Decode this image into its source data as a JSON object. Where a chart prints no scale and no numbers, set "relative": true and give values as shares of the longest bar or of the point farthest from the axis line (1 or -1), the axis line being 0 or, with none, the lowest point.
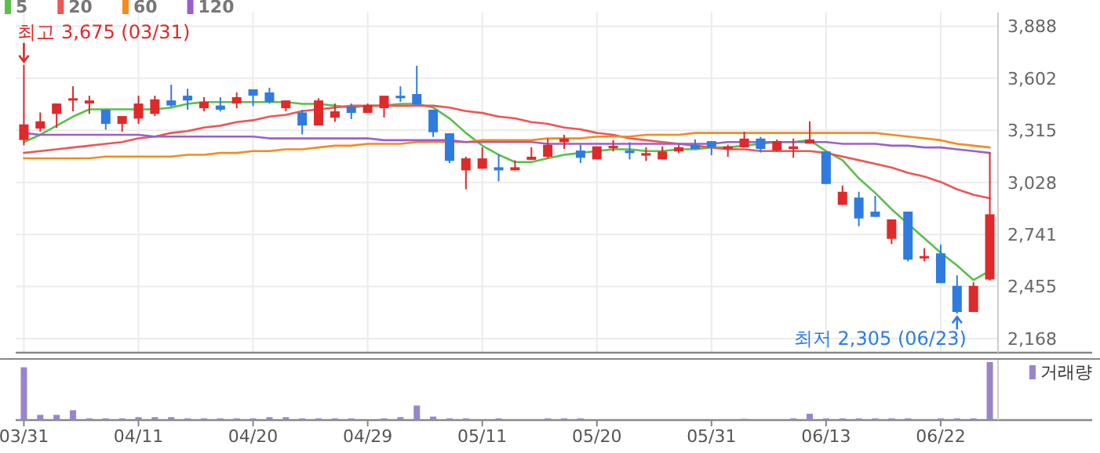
{
  "chart_data": [
    {
      "type": "candlestick",
      "categories": [
        "03/31",
        null,
        null,
        null,
        null,
        null,
        null,
        "04/11",
        null,
        null,
        null,
        null,
        null,
        null,
        "04/20",
        null,
        null,
        null,
        null,
        null,
        null,
        "04/29",
        null,
        null,
        null,
        null,
        null,
        null,
        "05/11",
        null,
        null,
        null,
        null,
        null,
        null,
        "05/20",
        null,
        null,
        null,
        null,
        null,
        null,
        "05/31",
        null,
        null,
        null,
        null,
        null,
        null,
        "06/13",
        null,
        null,
        null,
        null,
        null,
        null,
        "06/22",
        null,
        null,
        null
      ],
      "tick_labels": "y",
      "ylim": [
        2090,
        3963
      ],
      "yticks": [
        {
          "value": 2168,
          "label": "2,168"
        },
        {
          "value": 2455,
          "label": "2,455"
        },
        {
          "value": 2741,
          "label": "2,741"
        },
        {
          "value": 3028,
          "label": "3,028"
        },
        {
          "value": 3315,
          "label": "3,315"
        },
        {
          "value": 3602,
          "label": "3,602"
        },
        {
          "value": 3888,
          "label": "3,888"
        }
      ],
      "grid": true,
      "legend": "top left",
      "ohlc": [
        [
          3261,
          3675,
          3232,
          3347
        ],
        [
          3324,
          3413,
          3307,
          3364
        ],
        [
          3405,
          3462,
          3327,
          3462
        ],
        [
          3485,
          3557,
          3419,
          3491
        ],
        [
          3462,
          3505,
          3405,
          3479
        ],
        [
          3428,
          3428,
          3318,
          3350
        ],
        [
          3350,
          3393,
          3307,
          3393
        ],
        [
          3379,
          3505,
          3350,
          3462
        ],
        [
          3405,
          3505,
          3393,
          3485
        ],
        [
          3479,
          3566,
          3442,
          3451
        ],
        [
          3505,
          3543,
          3428,
          3479
        ],
        [
          3436,
          3497,
          3419,
          3471
        ],
        [
          3451,
          3497,
          3419,
          3428
        ],
        [
          3462,
          3523,
          3436,
          3497
        ],
        [
          3540,
          3540,
          3448,
          3505
        ],
        [
          3523,
          3549,
          3462,
          3471
        ],
        [
          3436,
          3479,
          3419,
          3479
        ],
        [
          3413,
          3428,
          3292,
          3341
        ],
        [
          3341,
          3491,
          3341,
          3479
        ],
        [
          3384,
          3462,
          3361,
          3419
        ],
        [
          3445,
          3462,
          3376,
          3410
        ],
        [
          3410,
          3462,
          3410,
          3453
        ],
        [
          3436,
          3505,
          3385,
          3505
        ],
        [
          3505,
          3557,
          3471,
          3491
        ],
        [
          3514,
          3670,
          3456,
          3456
        ],
        [
          3428,
          3428,
          3278,
          3304
        ],
        [
          3298,
          3298,
          3134,
          3146
        ],
        [
          3094,
          3169,
          2990,
          3160
        ],
        [
          3103,
          3221,
          3103,
          3160
        ],
        [
          3111,
          3183,
          3034,
          3094
        ],
        [
          3094,
          3149,
          3094,
          3111
        ],
        [
          3152,
          3221,
          3152,
          3169
        ],
        [
          3169,
          3269,
          3160,
          3235
        ],
        [
          3249,
          3290,
          3212,
          3269
        ],
        [
          3203,
          3235,
          3134,
          3163
        ],
        [
          3154,
          3226,
          3154,
          3226
        ],
        [
          3223,
          3261,
          3198,
          3229
        ],
        [
          3203,
          3249,
          3154,
          3189
        ],
        [
          3175,
          3221,
          3146,
          3189
        ],
        [
          3154,
          3226,
          3154,
          3198
        ],
        [
          3198,
          3235,
          3189,
          3221
        ],
        [
          3235,
          3264,
          3212,
          3212
        ],
        [
          3255,
          3255,
          3177,
          3221
        ],
        [
          3212,
          3235,
          3169,
          3226
        ],
        [
          3221,
          3307,
          3221,
          3269
        ],
        [
          3269,
          3278,
          3192,
          3212
        ],
        [
          3203,
          3264,
          3198,
          3255
        ],
        [
          3212,
          3269,
          3163,
          3226
        ],
        [
          3241,
          3364,
          3241,
          3264
        ],
        [
          3198,
          3198,
          3019,
          3019
        ],
        [
          2904,
          3010,
          2904,
          2976
        ],
        [
          2944,
          2976,
          2786,
          2829
        ],
        [
          2867,
          2953,
          2838,
          2838
        ],
        [
          2717,
          2824,
          2688,
          2824
        ],
        [
          2867,
          2867,
          2593,
          2602
        ],
        [
          2616,
          2665,
          2593,
          2622
        ],
        [
          2637,
          2685,
          2473,
          2473
        ],
        [
          2458,
          2516,
          2305,
          2314
        ],
        [
          2314,
          2478,
          2314,
          2458
        ],
        [
          2493,
          3192,
          2487,
          2852
        ]
      ],
      "colors": [
        "#e0292a",
        "#e0292a",
        "#e0292a",
        "#e0292a",
        "#e0292a",
        "#2f7be0",
        "#e0292a",
        "#e0292a",
        "#e0292a",
        "#2f7be0",
        "#2f7be0",
        "#e0292a",
        "#2f7be0",
        "#e0292a",
        "#2f7be0",
        "#2f7be0",
        "#e0292a",
        "#2f7be0",
        "#e0292a",
        "#e0292a",
        "#2f7be0",
        "#e0292a",
        "#e0292a",
        "#2f7be0",
        "#2f7be0",
        "#2f7be0",
        "#2f7be0",
        "#e0292a",
        "#e0292a",
        "#2f7be0",
        "#e0292a",
        "#e0292a",
        "#e0292a",
        "#e0292a",
        "#2f7be0",
        "#e0292a",
        "#e0292a",
        "#2f7be0",
        "#e0292a",
        "#e0292a",
        "#e0292a",
        "#2f7be0",
        "#2f7be0",
        "#e0292a",
        "#e0292a",
        "#2f7be0",
        "#e0292a",
        "#e0292a",
        "#e0292a",
        "#2f7be0",
        "#e0292a",
        "#2f7be0",
        "#2f7be0",
        "#e0292a",
        "#2f7be0",
        "#e0292a",
        "#2f7be0",
        "#2f7be0",
        "#e0292a",
        "#e0292a"
      ],
      "series": [
        {
          "name": "5",
          "type": "line",
          "color": "#5bbf4a",
          "values": [
            3250,
            3290,
            3340,
            3390,
            3430,
            3430,
            3430,
            3430,
            3430,
            3440,
            3460,
            3470,
            3470,
            3470,
            3470,
            3470,
            3470,
            3460,
            3460,
            3450,
            3440,
            3450,
            3450,
            3460,
            3460,
            3440,
            3380,
            3300,
            3230,
            3180,
            3140,
            3140,
            3160,
            3180,
            3190,
            3200,
            3210,
            3210,
            3200,
            3200,
            3210,
            3210,
            3220,
            3220,
            3230,
            3240,
            3250,
            3250,
            3260,
            3200,
            3150,
            3050,
            2970,
            2880,
            2800,
            2720,
            2640,
            2570,
            2490,
            2540
          ]
        },
        {
          "name": "20",
          "type": "line",
          "color": "#ee5555",
          "values": [
            3190,
            3200,
            3210,
            3220,
            3230,
            3240,
            3250,
            3270,
            3280,
            3300,
            3310,
            3330,
            3340,
            3360,
            3370,
            3390,
            3400,
            3420,
            3430,
            3440,
            3450,
            3450,
            3450,
            3450,
            3450,
            3450,
            3440,
            3420,
            3410,
            3390,
            3380,
            3360,
            3350,
            3330,
            3320,
            3300,
            3290,
            3270,
            3260,
            3250,
            3240,
            3230,
            3220,
            3210,
            3210,
            3200,
            3200,
            3200,
            3200,
            3190,
            3170,
            3150,
            3130,
            3110,
            3080,
            3060,
            3030,
            2990,
            2960,
            2940
          ]
        },
        {
          "name": "60",
          "type": "line",
          "color": "#f58a1f",
          "values": [
            3160,
            3160,
            3160,
            3160,
            3160,
            3170,
            3170,
            3170,
            3170,
            3170,
            3180,
            3180,
            3190,
            3190,
            3200,
            3200,
            3210,
            3210,
            3220,
            3230,
            3230,
            3240,
            3240,
            3240,
            3250,
            3250,
            3250,
            3250,
            3260,
            3260,
            3260,
            3260,
            3270,
            3270,
            3270,
            3280,
            3280,
            3280,
            3290,
            3290,
            3290,
            3300,
            3300,
            3300,
            3300,
            3300,
            3300,
            3300,
            3300,
            3300,
            3300,
            3300,
            3300,
            3290,
            3280,
            3270,
            3260,
            3240,
            3230,
            3220
          ]
        },
        {
          "name": "120",
          "type": "line",
          "color": "#9b5fcb",
          "values": [
            3300,
            3290,
            3290,
            3290,
            3290,
            3290,
            3290,
            3290,
            3280,
            3280,
            3280,
            3280,
            3280,
            3280,
            3280,
            3270,
            3270,
            3270,
            3270,
            3270,
            3270,
            3270,
            3260,
            3260,
            3260,
            3260,
            3260,
            3250,
            3250,
            3250,
            3250,
            3250,
            3240,
            3240,
            3240,
            3240,
            3240,
            3240,
            3240,
            3240,
            3240,
            3240,
            3240,
            3250,
            3250,
            3250,
            3250,
            3250,
            3250,
            3250,
            3240,
            3240,
            3240,
            3230,
            3230,
            3220,
            3220,
            3210,
            3200,
            3190
          ]
        }
      ],
      "annotations": [
        {
          "text": "최고 3,675 (03/31)",
          "x": "03/31",
          "y": 3675
        },
        "최저 2,305 (06/23)"
      ]
    },
    {
      "type": "bar",
      "relative": true,
      "tick_labels": "x",
      "legend": "top right",
      "categories": [
        "03/31",
        null,
        null,
        null,
        null,
        null,
        null,
        "04/11",
        null,
        null,
        null,
        null,
        null,
        null,
        "04/20",
        null,
        null,
        null,
        null,
        null,
        null,
        "04/29",
        null,
        null,
        null,
        null,
        null,
        null,
        "05/11",
        null,
        null,
        null,
        null,
        null,
        null,
        "05/20",
        null,
        null,
        null,
        null,
        null,
        null,
        "05/31",
        null,
        null,
        null,
        null,
        null,
        null,
        "06/13",
        null,
        null,
        null,
        null,
        null,
        null,
        "06/22",
        null,
        null,
        null
      ],
      "series": [
        {
          "name": "거래량",
          "color": "#9a84cc",
          "values": [
            0.91,
            0.09,
            0.09,
            0.17,
            0.03,
            0.03,
            0.03,
            0.05,
            0.05,
            0.05,
            0.03,
            0.03,
            0.03,
            0.03,
            0.03,
            0.05,
            0.05,
            0.03,
            0.03,
            0.03,
            0.03,
            0,
            0.03,
            0.05,
            0.25,
            0.06,
            0.03,
            0.03,
            0,
            0.03,
            0,
            0,
            0.03,
            0.03,
            0.03,
            0,
            0,
            0,
            0,
            0,
            0,
            0,
            0,
            0,
            0.02,
            0,
            0,
            0.03,
            0.11,
            0.03,
            0.03,
            0.03,
            0.03,
            0.03,
            0.03,
            0,
            0.03,
            0.03,
            0.03,
            1
          ]
        }
      ]
    }
  ]
}
